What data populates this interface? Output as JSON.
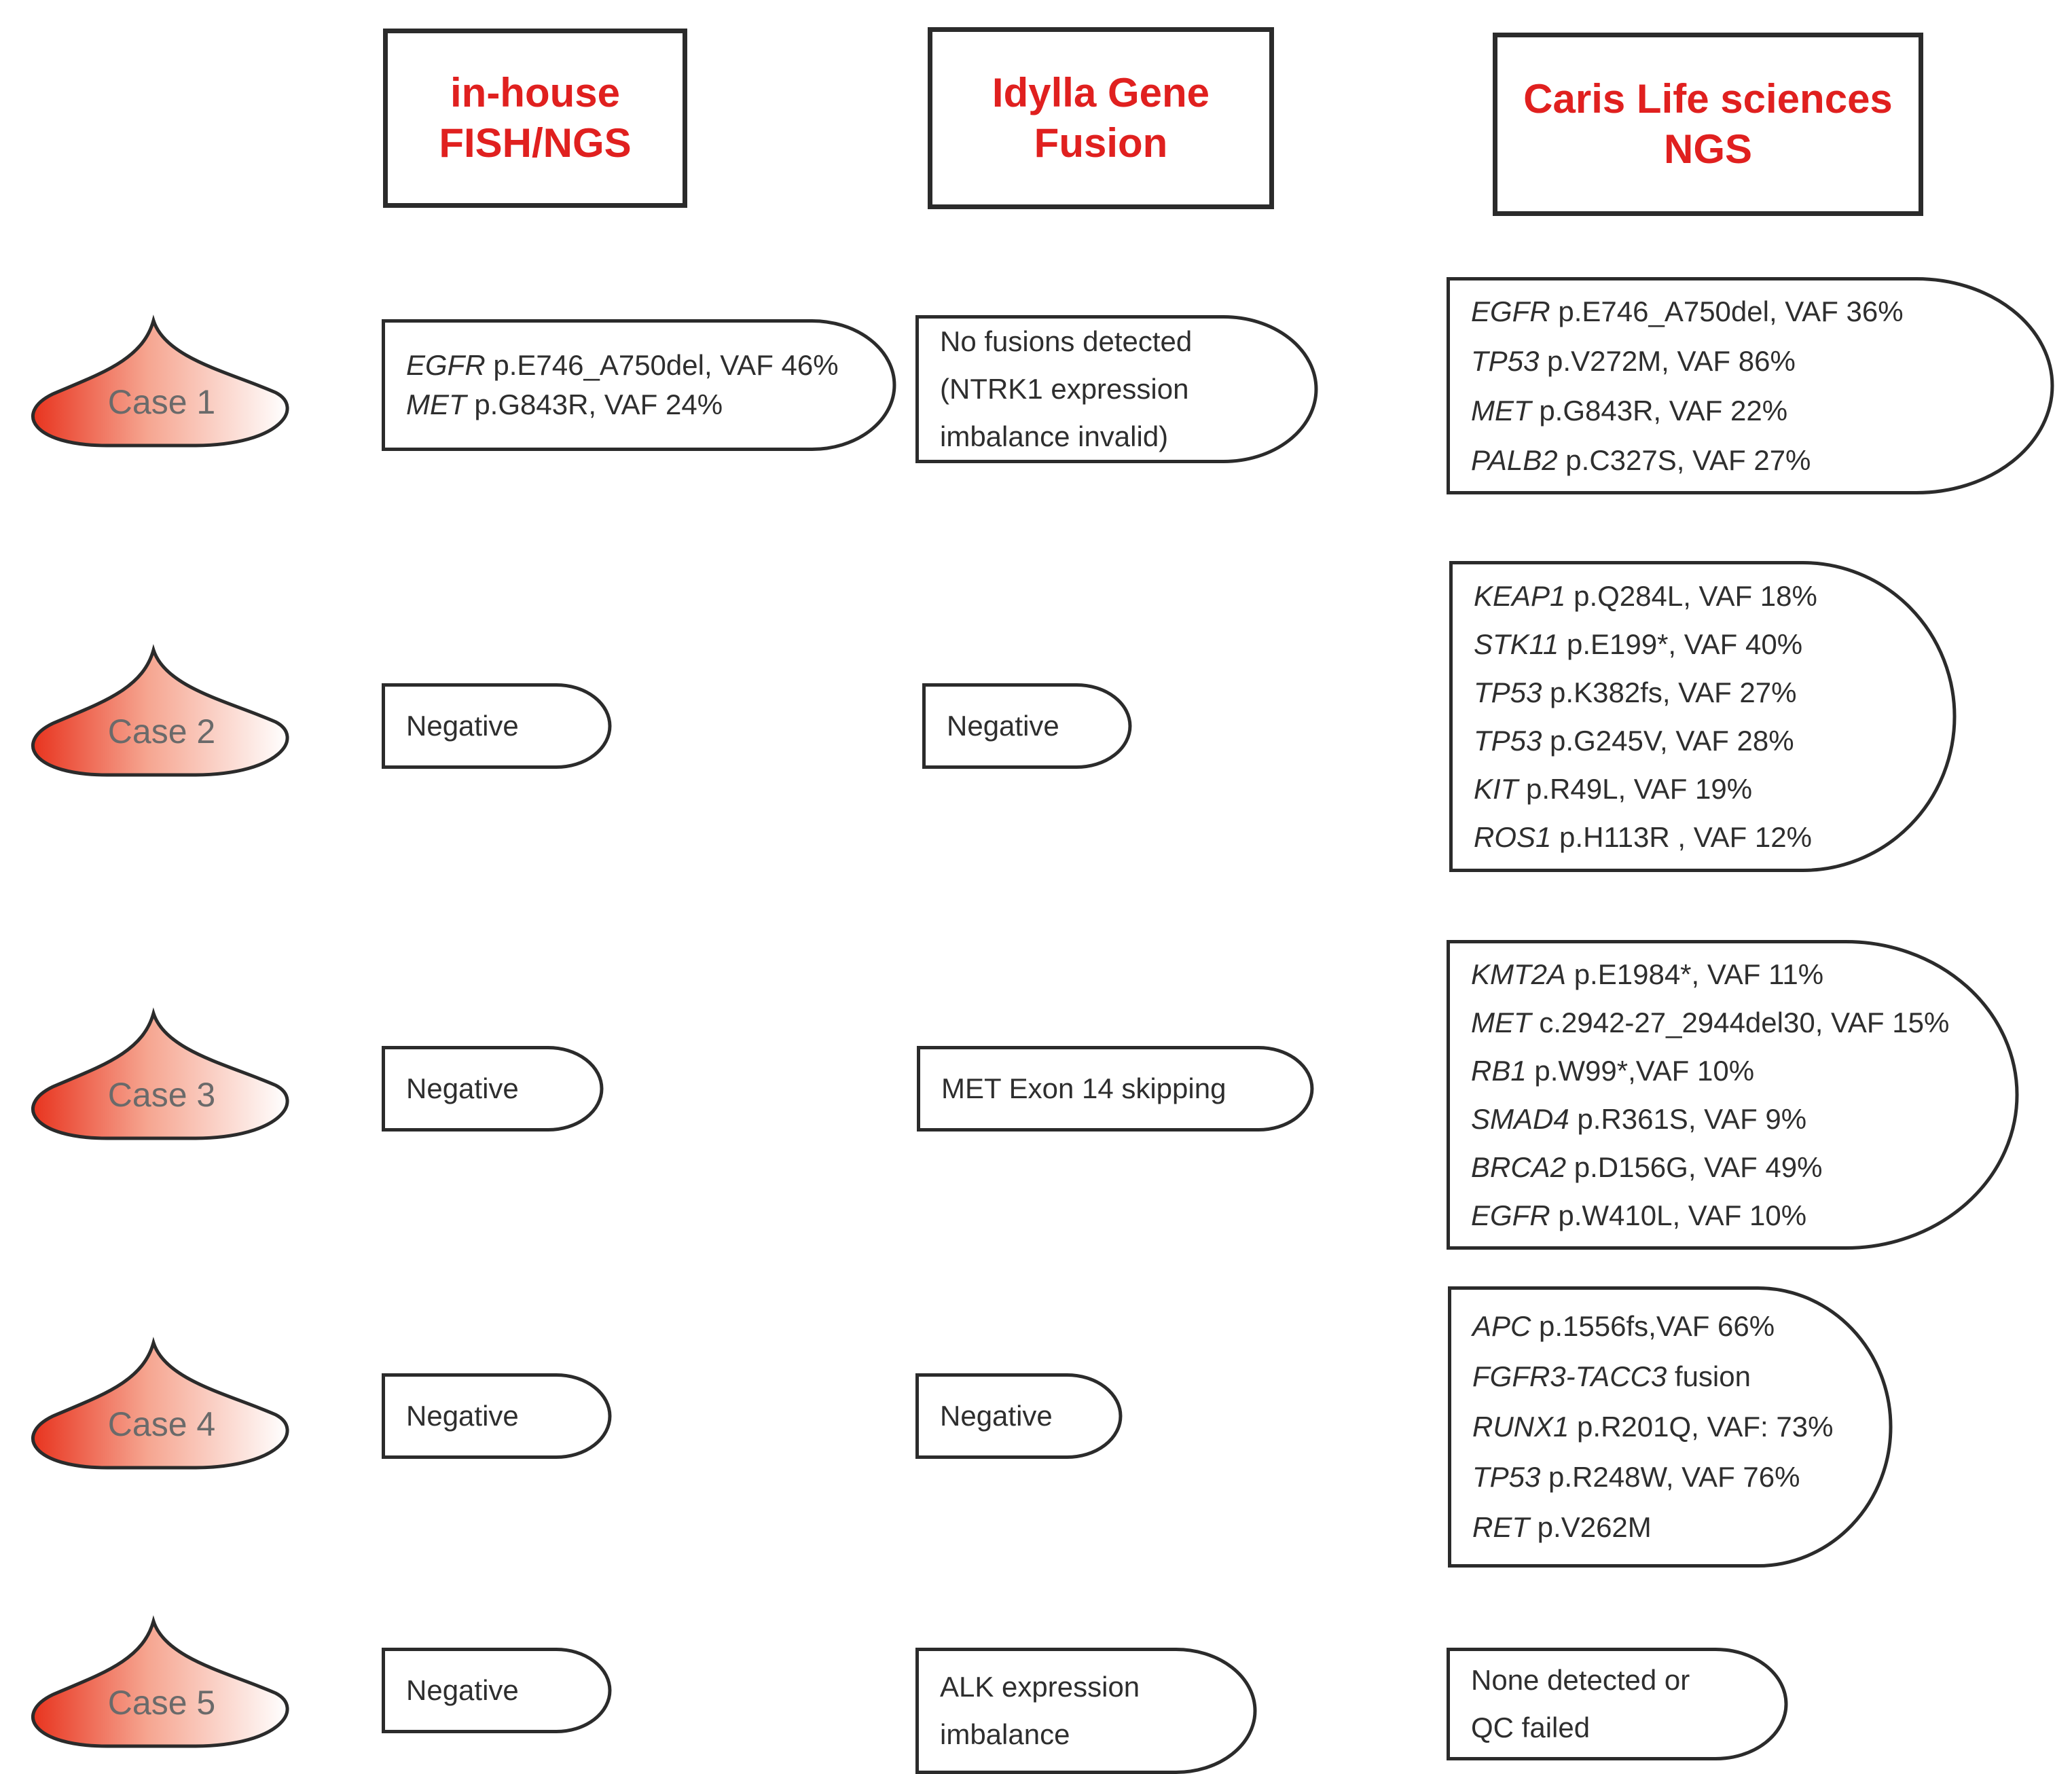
{
  "colors": {
    "header_text": "#e0201f",
    "outline": "#2b2b2b",
    "case_gradient_start": "#e8341f"
  },
  "headers": {
    "inhouse": {
      "line1": "in-house",
      "line2": "FISH/NGS"
    },
    "idylla": {
      "line1": "Idylla Gene",
      "line2": "Fusion"
    },
    "caris": {
      "line1": "Caris Life sciences",
      "line2": "NGS"
    }
  },
  "cases": [
    {
      "label": "Case 1",
      "inhouse": [
        {
          "gene": "EGFR",
          "detail": " p.E746_A750del, VAF 46%"
        },
        {
          "gene": "MET",
          "detail": " p.G843R, VAF 24%"
        }
      ],
      "idylla": [
        {
          "gene": "",
          "detail": "No fusions detected"
        },
        {
          "gene": "",
          "detail": " (NTRK1 expression"
        },
        {
          "gene": "",
          "detail": "imbalance invalid)"
        }
      ],
      "caris": [
        {
          "gene": "EGFR",
          "detail": " p.E746_A750del, VAF 36%"
        },
        {
          "gene": "TP53",
          "detail": " p.V272M, VAF 86%"
        },
        {
          "gene": "MET",
          "detail": " p.G843R,  VAF 22%"
        },
        {
          "gene": "PALB2",
          "detail": " p.C327S, VAF 27%"
        }
      ]
    },
    {
      "label": "Case 2",
      "inhouse": [
        {
          "gene": "",
          "detail": "Negative"
        }
      ],
      "idylla": [
        {
          "gene": "",
          "detail": "Negative"
        }
      ],
      "caris": [
        {
          "gene": "KEAP1",
          "detail": " p.Q284L, VAF 18%"
        },
        {
          "gene": "STK11",
          "detail": " p.E199*, VAF 40%"
        },
        {
          "gene": "TP53",
          "detail": " p.K382fs, VAF 27%"
        },
        {
          "gene": "TP53",
          "detail": " p.G245V, VAF 28%"
        },
        {
          "gene": "KIT",
          "detail": " p.R49L, VAF 19%"
        },
        {
          "gene": "ROS1",
          "detail": " p.H113R , VAF 12%"
        }
      ]
    },
    {
      "label": "Case 3",
      "inhouse": [
        {
          "gene": "",
          "detail": "Negative"
        }
      ],
      "idylla": [
        {
          "gene": "",
          "detail": "MET Exon 14 skipping"
        }
      ],
      "caris": [
        {
          "gene": "KMT2A",
          "detail": " p.E1984*, VAF 11%"
        },
        {
          "gene": "MET",
          "detail": " c.2942-27_2944del30, VAF 15%"
        },
        {
          "gene": "RB1",
          "detail": " p.W99*,VAF 10%"
        },
        {
          "gene": "SMAD4",
          "detail": " p.R361S, VAF 9%"
        },
        {
          "gene": "BRCA2",
          "detail": " p.D156G, VAF 49%"
        },
        {
          "gene": "EGFR",
          "detail": " p.W410L, VAF 10%"
        }
      ]
    },
    {
      "label": "Case 4",
      "inhouse": [
        {
          "gene": "",
          "detail": "Negative"
        }
      ],
      "idylla": [
        {
          "gene": "",
          "detail": "Negative"
        }
      ],
      "caris": [
        {
          "gene": "APC",
          "detail": " p.1556fs,VAF 66%"
        },
        {
          "gene": "FGFR3-TACC3",
          "detail": " fusion"
        },
        {
          "gene": "RUNX1",
          "detail": " p.R201Q, VAF: 73%"
        },
        {
          "gene": "TP53",
          "detail": " p.R248W, VAF 76%"
        },
        {
          "gene": "RET",
          "detail": " p.V262M"
        }
      ]
    },
    {
      "label": "Case 5",
      "inhouse": [
        {
          "gene": "",
          "detail": "Negative"
        }
      ],
      "idylla": [
        {
          "gene": "",
          "detail": "ALK expression"
        },
        {
          "gene": "",
          "detail": " imbalance"
        }
      ],
      "caris": [
        {
          "gene": "",
          "detail": "None detected or"
        },
        {
          "gene": "",
          "detail": "QC failed"
        }
      ]
    }
  ]
}
